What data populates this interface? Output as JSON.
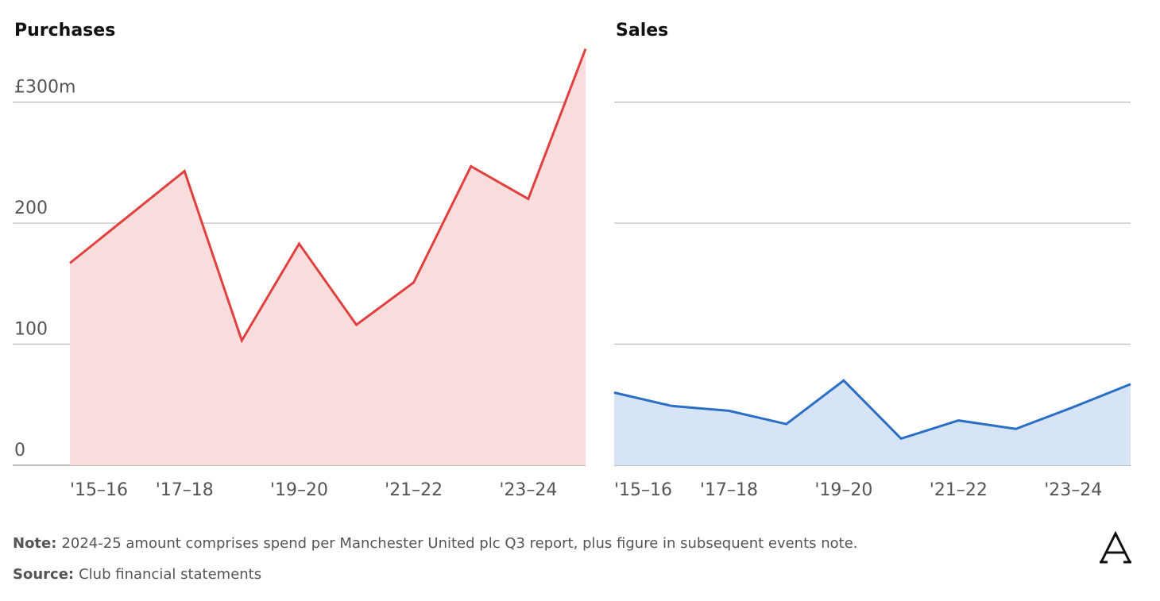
{
  "chart_data": [
    {
      "type": "area",
      "title": "Purchases",
      "categories": [
        "'15–16",
        null,
        "'17–18",
        null,
        "'19–20",
        null,
        "'21–22",
        null,
        "'23–24",
        null
      ],
      "values": [
        167,
        205,
        243,
        103,
        183,
        116,
        151,
        247,
        220,
        344
      ],
      "color": "#e0403f",
      "fill": "#f9dcdc",
      "ylim": [
        0,
        345
      ],
      "yticks": [
        0,
        100,
        200,
        {
          "value": 300,
          "label": "£300m"
        }
      ],
      "grid": true
    },
    {
      "type": "area",
      "title": "Sales",
      "categories": [
        "'15–16",
        null,
        "'17–18",
        null,
        "'19–20",
        null,
        "'21–22",
        null,
        "'23–24",
        null
      ],
      "values": [
        60,
        49,
        45,
        34,
        70,
        22,
        37,
        30,
        48,
        67
      ],
      "color": "#2b6fc4",
      "fill": "#d6e4f5",
      "ylim": [
        0,
        345
      ],
      "yticks": [
        0,
        100,
        200,
        300
      ],
      "grid": true
    }
  ],
  "note": {
    "label": "Note:",
    "text": "2024-25 amount comprises spend per Manchester United plc Q3 report, plus figure in subsequent events note."
  },
  "source": {
    "label": "Source:",
    "text": "Club financial statements"
  }
}
